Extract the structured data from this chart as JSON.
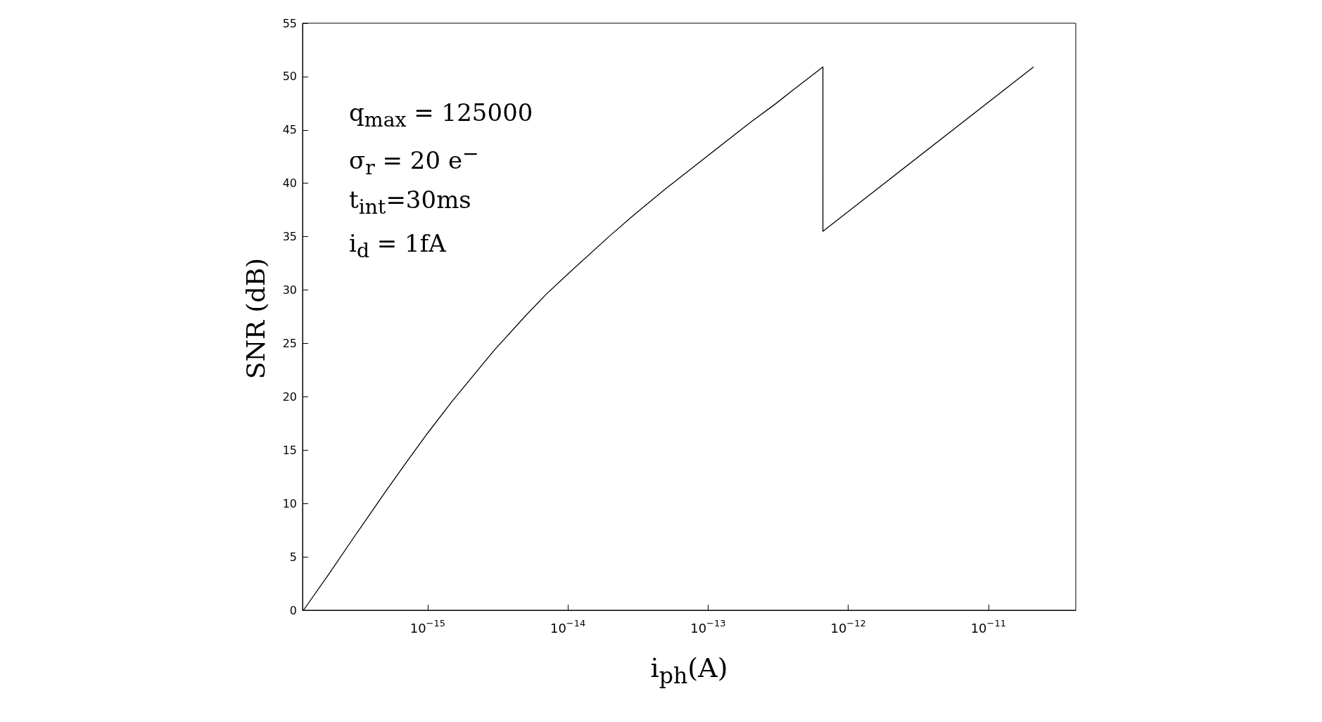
{
  "chart_data": {
    "type": "line",
    "xlabel": "i$_{ph}$(A)",
    "ylabel": "SNR (dB)",
    "log": "x",
    "xlim": [
      1.28e-16,
      4.2e-11
    ],
    "ylim": [
      0,
      55
    ],
    "xticks": [
      {
        "value": 1e-15,
        "label": "10$^{−15}$"
      },
      {
        "value": 1e-14,
        "label": "10$^{−14}$"
      },
      {
        "value": 1e-13,
        "label": "10$^{−13}$"
      },
      {
        "value": 1e-12,
        "label": "10$^{−12}$"
      },
      {
        "value": 1e-11,
        "label": "10$^{−11}$"
      }
    ],
    "yticks": [
      0,
      5,
      10,
      15,
      20,
      25,
      30,
      35,
      40,
      45,
      50,
      55
    ],
    "x": [
      1.3e-16,
      2e-16,
      3e-16,
      5e-16,
      7e-16,
      1e-15,
      1.5e-15,
      2e-15,
      3e-15,
      5e-15,
      7e-15,
      1e-14,
      2e-14,
      3e-14,
      5e-14,
      1e-13,
      2e-13,
      3e-13,
      4e-13,
      6.6e-13,
      6.6e-13,
      2.1e-11
    ],
    "series": [
      {
        "color": "#000000",
        "values": [
          0,
          3.5,
          6.9,
          11.1,
          13.8,
          16.6,
          19.6,
          21.6,
          24.4,
          27.6,
          29.6,
          31.5,
          35.1,
          37.1,
          39.5,
          42.6,
          45.7,
          47.4,
          48.7,
          50.9,
          35.5,
          50.9
        ]
      }
    ],
    "annotations": [
      "q$_{max}$ = 125000",
      "σ$_{r}$ = 20 e$^{−}$",
      "t$_{int}$=30ms",
      "i$_{d}$ = 1fA"
    ],
    "grid": false,
    "marker": "none",
    "line_style": "solid"
  }
}
